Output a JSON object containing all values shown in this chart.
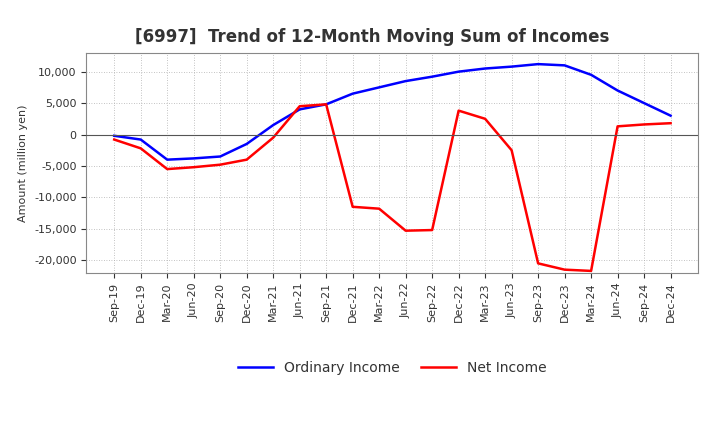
{
  "title": "[6997]  Trend of 12-Month Moving Sum of Incomes",
  "ylabel": "Amount (million yen)",
  "background_color": "#ffffff",
  "grid_color": "#b0b0b0",
  "x_labels": [
    "Sep-19",
    "Dec-19",
    "Mar-20",
    "Jun-20",
    "Sep-20",
    "Dec-20",
    "Mar-21",
    "Jun-21",
    "Sep-21",
    "Dec-21",
    "Mar-22",
    "Jun-22",
    "Sep-22",
    "Dec-22",
    "Mar-23",
    "Jun-23",
    "Sep-23",
    "Dec-23",
    "Mar-24",
    "Jun-24",
    "Sep-24",
    "Dec-24"
  ],
  "ordinary_income": [
    -200,
    -800,
    -4000,
    -3800,
    -3500,
    -1500,
    1500,
    4000,
    4800,
    6500,
    7500,
    8500,
    9200,
    10000,
    10500,
    10800,
    11200,
    11000,
    9500,
    7000,
    5000,
    3000
  ],
  "net_income": [
    -800,
    -2200,
    -5500,
    -5200,
    -4800,
    -4000,
    -500,
    4500,
    4800,
    -11500,
    -11800,
    -15300,
    -15200,
    3800,
    2500,
    -2500,
    -20500,
    -21500,
    -21700,
    1300,
    1600,
    1800
  ],
  "ordinary_color": "#0000ff",
  "net_color": "#ff0000",
  "ylim": [
    -22000,
    13000
  ],
  "yticks": [
    -20000,
    -15000,
    -10000,
    -5000,
    0,
    5000,
    10000
  ],
  "line_width": 1.8,
  "title_fontsize": 12,
  "axis_label_fontsize": 8,
  "tick_fontsize": 8,
  "legend_fontsize": 10
}
